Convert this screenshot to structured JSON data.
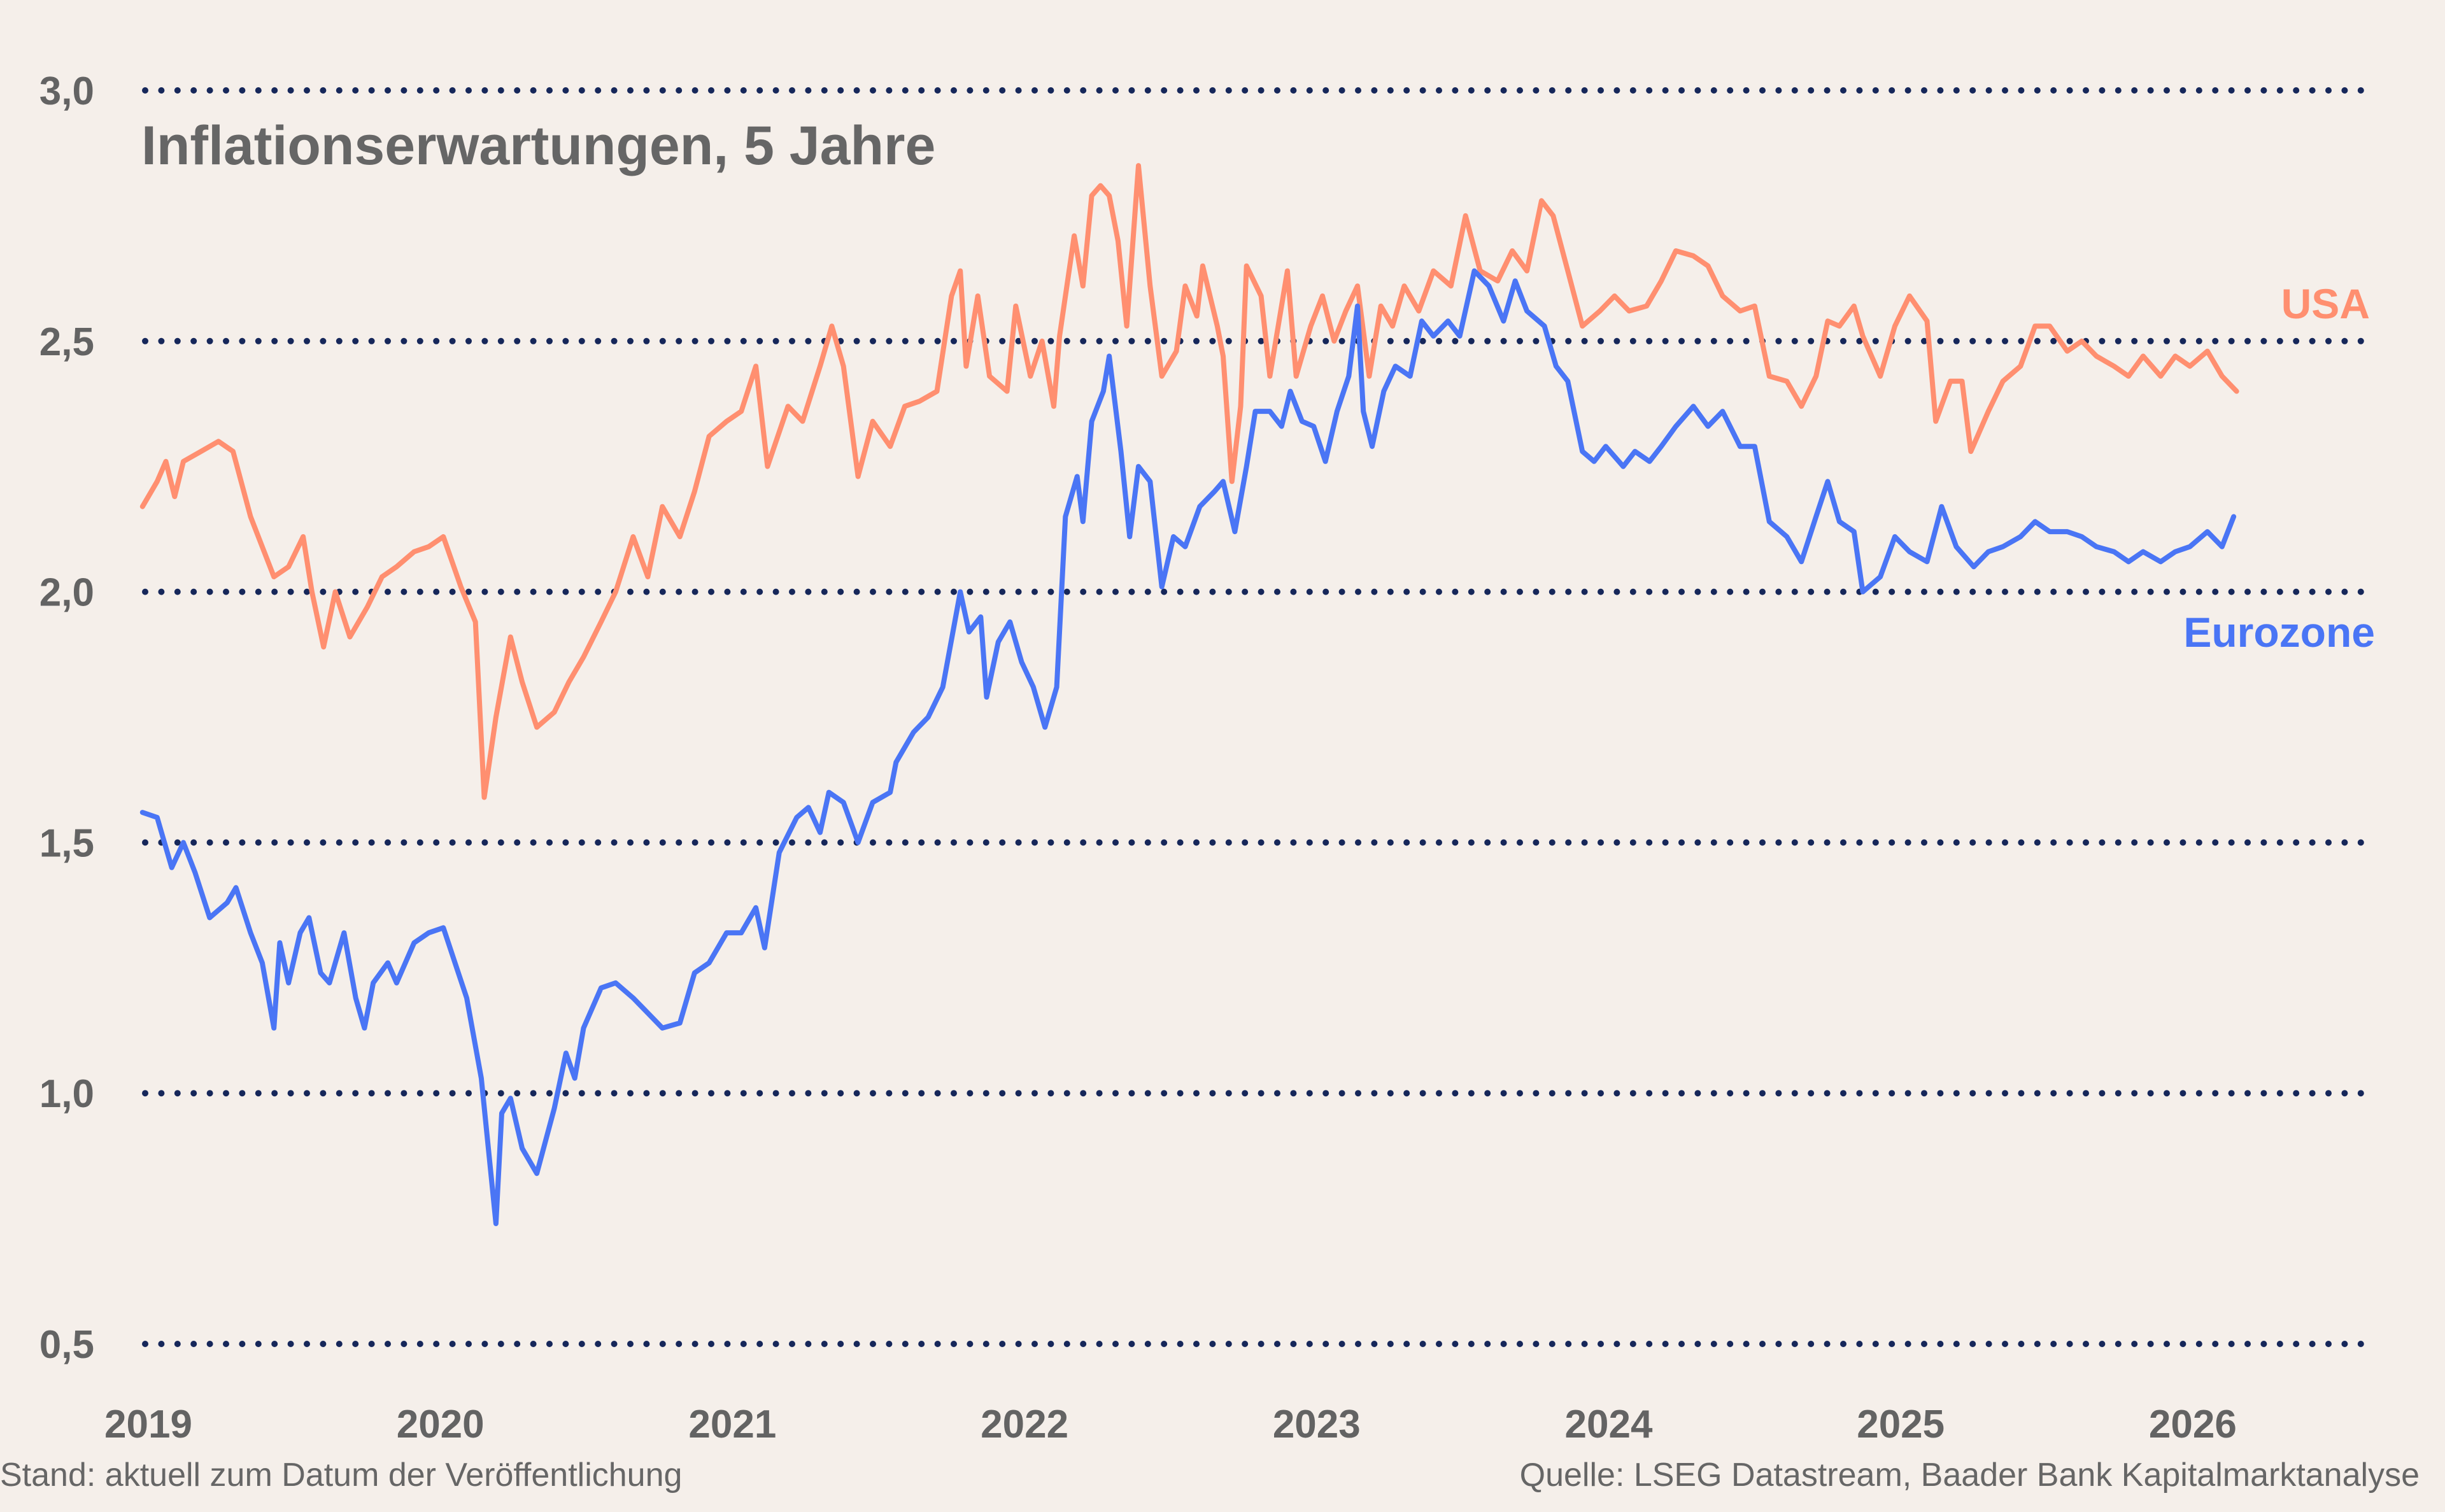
{
  "chart_data": {
    "type": "line",
    "title": "Inflationserwartungen, 5 Jahre",
    "xlabel": "",
    "ylabel": "",
    "ylim": [
      0.5,
      3.0
    ],
    "xlim": [
      2019,
      2026.7
    ],
    "yticks": [
      {
        "value": 3.0,
        "label": "3,0"
      },
      {
        "value": 2.5,
        "label": "2,5"
      },
      {
        "value": 2.0,
        "label": "2,0"
      },
      {
        "value": 1.5,
        "label": "1,5"
      },
      {
        "value": 1.0,
        "label": "1,0"
      },
      {
        "value": 0.5,
        "label": "0,5"
      }
    ],
    "xticks": [
      {
        "value": 2019,
        "label": "2019"
      },
      {
        "value": 2020,
        "label": "2020"
      },
      {
        "value": 2021,
        "label": "2021"
      },
      {
        "value": 2022,
        "label": "2022"
      },
      {
        "value": 2023,
        "label": "2023"
      },
      {
        "value": 2024,
        "label": "2024"
      },
      {
        "value": 2025,
        "label": "2025"
      },
      {
        "value": 2026,
        "label": "2026"
      }
    ],
    "grid": "horizontal dotted",
    "legend": "inline labels at right end of series",
    "series": [
      {
        "name": "USA",
        "color": "#ff8f70",
        "x": [
          2018.98,
          2019.03,
          2019.06,
          2019.09,
          2019.12,
          2019.18,
          2019.24,
          2019.29,
          2019.35,
          2019.43,
          2019.48,
          2019.53,
          2019.56,
          2019.6,
          2019.64,
          2019.69,
          2019.75,
          2019.8,
          2019.85,
          2019.91,
          2019.96,
          2020.01,
          2020.07,
          2020.12,
          2020.15,
          2020.19,
          2020.24,
          2020.28,
          2020.33,
          2020.39,
          2020.44,
          2020.49,
          2020.55,
          2020.6,
          2020.66,
          2020.71,
          2020.76,
          2020.82,
          2020.87,
          2020.92,
          2020.98,
          2021.03,
          2021.08,
          2021.12,
          2021.19,
          2021.24,
          2021.3,
          2021.34,
          2021.38,
          2021.43,
          2021.48,
          2021.54,
          2021.59,
          2021.64,
          2021.7,
          2021.75,
          2021.78,
          2021.8,
          2021.84,
          2021.88,
          2021.94,
          2021.97,
          2022.02,
          2022.06,
          2022.1,
          2022.12,
          2022.17,
          2022.2,
          2022.23,
          2022.26,
          2022.29,
          2022.32,
          2022.35,
          2022.39,
          2022.43,
          2022.47,
          2022.52,
          2022.55,
          2022.59,
          2022.61,
          2022.66,
          2022.68,
          2022.71,
          2022.74,
          2022.76,
          2022.81,
          2022.84,
          2022.9,
          2022.93,
          2022.98,
          2023.02,
          2023.06,
          2023.1,
          2023.14,
          2023.18,
          2023.22,
          2023.26,
          2023.3,
          2023.35,
          2023.4,
          2023.46,
          2023.51,
          2023.56,
          2023.62,
          2023.67,
          2023.72,
          2023.77,
          2023.81,
          2023.86,
          2023.91,
          2023.97,
          2024.02,
          2024.07,
          2024.13,
          2024.18,
          2024.23,
          2024.29,
          2024.34,
          2024.39,
          2024.45,
          2024.5,
          2024.55,
          2024.61,
          2024.66,
          2024.71,
          2024.75,
          2024.79,
          2024.84,
          2024.87,
          2024.93,
          2024.98,
          2025.03,
          2025.09,
          2025.12,
          2025.17,
          2025.21,
          2025.24,
          2025.3,
          2025.35,
          2025.41,
          2025.46,
          2025.51,
          2025.57,
          2025.62,
          2025.67,
          2025.73,
          2025.78,
          2025.83,
          2025.89,
          2025.94,
          2025.99,
          2026.05,
          2026.1,
          2026.15
        ],
        "y": [
          2.17,
          2.22,
          2.26,
          2.19,
          2.26,
          2.28,
          2.3,
          2.28,
          2.15,
          2.03,
          2.05,
          2.11,
          2.0,
          1.89,
          2.0,
          1.91,
          1.97,
          2.03,
          2.05,
          2.08,
          2.09,
          2.11,
          2.01,
          1.94,
          1.59,
          1.75,
          1.91,
          1.82,
          1.73,
          1.76,
          1.82,
          1.87,
          1.94,
          2.0,
          2.11,
          2.03,
          2.17,
          2.11,
          2.2,
          2.31,
          2.34,
          2.36,
          2.45,
          2.25,
          2.37,
          2.34,
          2.45,
          2.53,
          2.45,
          2.23,
          2.34,
          2.29,
          2.37,
          2.38,
          2.4,
          2.59,
          2.64,
          2.45,
          2.59,
          2.43,
          2.4,
          2.57,
          2.43,
          2.5,
          2.37,
          2.51,
          2.71,
          2.61,
          2.79,
          2.81,
          2.79,
          2.7,
          2.53,
          2.85,
          2.61,
          2.43,
          2.48,
          2.61,
          2.55,
          2.65,
          2.53,
          2.47,
          2.22,
          2.37,
          2.65,
          2.59,
          2.43,
          2.64,
          2.43,
          2.53,
          2.59,
          2.5,
          2.56,
          2.61,
          2.43,
          2.57,
          2.53,
          2.61,
          2.56,
          2.64,
          2.61,
          2.75,
          2.64,
          2.62,
          2.68,
          2.64,
          2.78,
          2.75,
          2.64,
          2.53,
          2.56,
          2.59,
          2.56,
          2.57,
          2.62,
          2.68,
          2.67,
          2.65,
          2.59,
          2.56,
          2.57,
          2.43,
          2.42,
          2.37,
          2.43,
          2.54,
          2.53,
          2.57,
          2.51,
          2.43,
          2.53,
          2.59,
          2.54,
          2.34,
          2.42,
          2.42,
          2.28,
          2.36,
          2.42,
          2.45,
          2.53,
          2.53,
          2.48,
          2.5,
          2.47,
          2.45,
          2.43,
          2.47,
          2.43,
          2.47,
          2.45,
          2.48,
          2.43,
          2.4
        ]
      },
      {
        "name": "Eurozone",
        "color": "#4a75f5",
        "x": [
          2018.98,
          2019.03,
          2019.08,
          2019.12,
          2019.16,
          2019.21,
          2019.27,
          2019.3,
          2019.35,
          2019.39,
          2019.43,
          2019.45,
          2019.48,
          2019.52,
          2019.55,
          2019.59,
          2019.62,
          2019.67,
          2019.71,
          2019.74,
          2019.77,
          2019.82,
          2019.85,
          2019.91,
          2019.96,
          2020.01,
          2020.05,
          2020.09,
          2020.14,
          2020.19,
          2020.21,
          2020.24,
          2020.28,
          2020.33,
          2020.39,
          2020.43,
          2020.46,
          2020.49,
          2020.55,
          2020.6,
          2020.66,
          2020.71,
          2020.76,
          2020.82,
          2020.87,
          2020.92,
          2020.98,
          2021.03,
          2021.08,
          2021.11,
          2021.16,
          2021.22,
          2021.26,
          2021.3,
          2021.33,
          2021.38,
          2021.43,
          2021.48,
          2021.54,
          2021.56,
          2021.62,
          2021.67,
          2021.72,
          2021.78,
          2021.81,
          2021.85,
          2021.87,
          2021.91,
          2021.95,
          2021.99,
          2022.03,
          2022.07,
          2022.11,
          2022.14,
          2022.18,
          2022.2,
          2022.23,
          2022.27,
          2022.29,
          2022.33,
          2022.36,
          2022.39,
          2022.43,
          2022.47,
          2022.51,
          2022.55,
          2022.6,
          2022.65,
          2022.68,
          2022.72,
          2022.76,
          2022.79,
          2022.84,
          2022.88,
          2022.91,
          2022.95,
          2022.99,
          2023.03,
          2023.07,
          2023.11,
          2023.14,
          2023.16,
          2023.19,
          2023.23,
          2023.27,
          2023.32,
          2023.36,
          2023.4,
          2023.45,
          2023.49,
          2023.54,
          2023.59,
          2023.64,
          2023.68,
          2023.72,
          2023.78,
          2023.82,
          2023.86,
          2023.91,
          2023.95,
          2023.99,
          2024.05,
          2024.09,
          2024.14,
          2024.18,
          2024.23,
          2024.29,
          2024.34,
          2024.39,
          2024.45,
          2024.5,
          2024.55,
          2024.61,
          2024.66,
          2024.71,
          2024.75,
          2024.79,
          2024.84,
          2024.87,
          2024.93,
          2024.98,
          2025.03,
          2025.09,
          2025.14,
          2025.19,
          2025.25,
          2025.3,
          2025.35,
          2025.41,
          2025.46,
          2025.51,
          2025.57,
          2025.62,
          2025.67,
          2025.73,
          2025.78,
          2025.83,
          2025.89,
          2025.94,
          2025.99,
          2026.05,
          2026.1,
          2026.14
        ],
        "y": [
          1.56,
          1.55,
          1.45,
          1.5,
          1.44,
          1.35,
          1.38,
          1.41,
          1.32,
          1.26,
          1.13,
          1.3,
          1.22,
          1.32,
          1.35,
          1.24,
          1.22,
          1.32,
          1.19,
          1.13,
          1.22,
          1.26,
          1.22,
          1.3,
          1.32,
          1.33,
          1.26,
          1.19,
          1.03,
          0.74,
          0.96,
          0.99,
          0.89,
          0.84,
          0.97,
          1.08,
          1.03,
          1.13,
          1.21,
          1.22,
          1.19,
          1.16,
          1.13,
          1.14,
          1.24,
          1.26,
          1.32,
          1.32,
          1.37,
          1.29,
          1.48,
          1.55,
          1.57,
          1.52,
          1.6,
          1.58,
          1.5,
          1.58,
          1.6,
          1.66,
          1.72,
          1.75,
          1.81,
          2.0,
          1.92,
          1.95,
          1.79,
          1.9,
          1.94,
          1.86,
          1.81,
          1.73,
          1.81,
          2.15,
          2.23,
          2.14,
          2.34,
          2.4,
          2.47,
          2.28,
          2.11,
          2.25,
          2.22,
          2.01,
          2.11,
          2.09,
          2.17,
          2.2,
          2.22,
          2.12,
          2.25,
          2.36,
          2.36,
          2.33,
          2.4,
          2.34,
          2.33,
          2.26,
          2.36,
          2.43,
          2.57,
          2.36,
          2.29,
          2.4,
          2.45,
          2.43,
          2.54,
          2.51,
          2.54,
          2.51,
          2.64,
          2.61,
          2.54,
          2.62,
          2.56,
          2.53,
          2.45,
          2.42,
          2.28,
          2.26,
          2.29,
          2.25,
          2.28,
          2.26,
          2.29,
          2.33,
          2.37,
          2.33,
          2.36,
          2.29,
          2.29,
          2.14,
          2.11,
          2.06,
          2.15,
          2.22,
          2.14,
          2.12,
          2.0,
          2.03,
          2.11,
          2.08,
          2.06,
          2.17,
          2.09,
          2.05,
          2.08,
          2.09,
          2.11,
          2.14,
          2.12,
          2.12,
          2.11,
          2.09,
          2.08,
          2.06,
          2.08,
          2.06,
          2.08,
          2.09,
          2.12,
          2.09,
          2.15
        ]
      }
    ]
  },
  "footer": {
    "left": "Stand: aktuell zum Datum der Veröffentlichung",
    "right": "Quelle: LSEG Datastream, Baader Bank Kapitalmarktanalyse"
  },
  "colors": {
    "background": "#f5efea",
    "grid": "#16275a",
    "text": "#636363"
  }
}
